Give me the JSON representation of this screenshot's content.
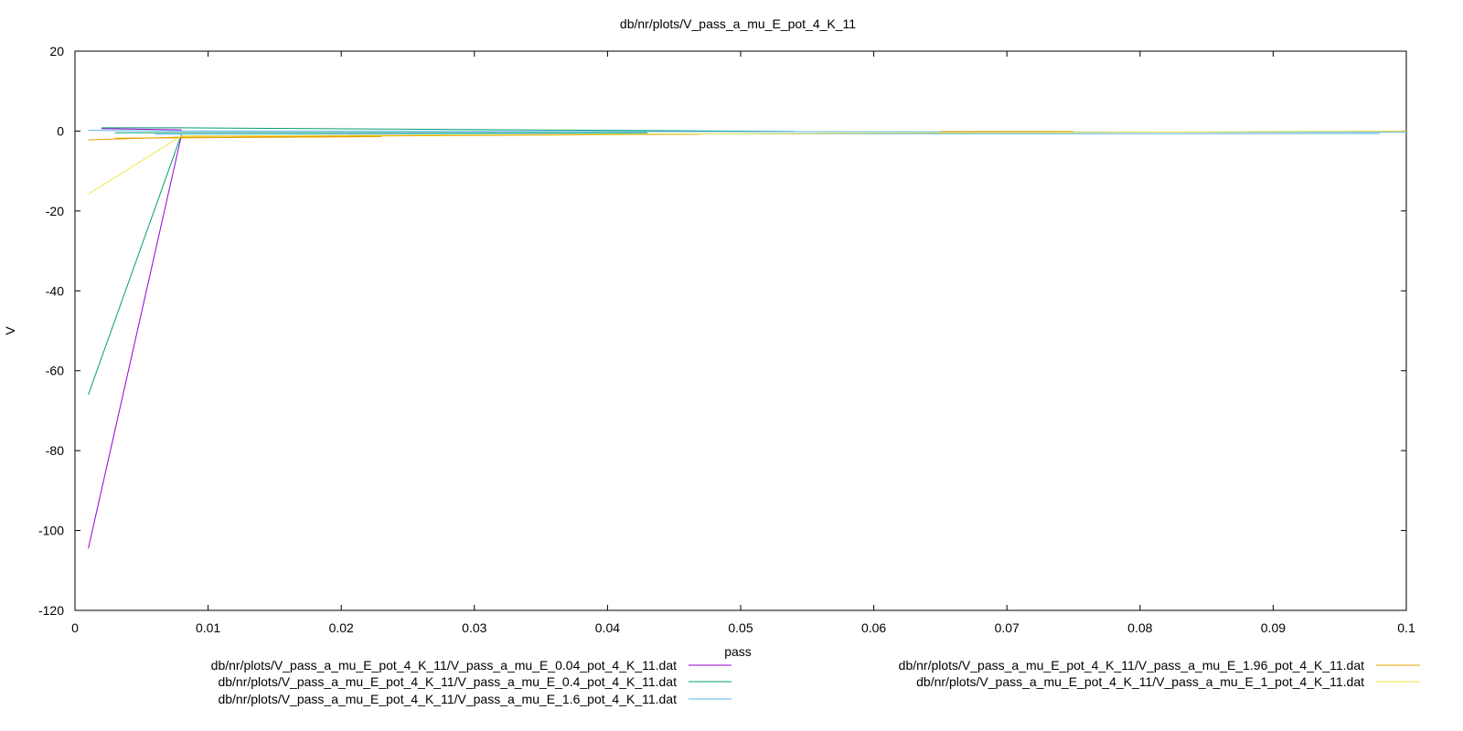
{
  "chart_data": {
    "type": "line",
    "title": "db/nr/plots/V_pass_a_mu_E_pot_4_K_11",
    "xlabel": "pass",
    "ylabel": "V",
    "xlim": [
      0,
      0.1
    ],
    "ylim": [
      -120,
      20
    ],
    "xticks": [
      0,
      0.01,
      0.02,
      0.03,
      0.04,
      0.05,
      0.06,
      0.07,
      0.08,
      0.09,
      0.1
    ],
    "xtick_labels": [
      "0",
      "0.01",
      "0.02",
      "0.03",
      "0.04",
      "0.05",
      "0.06",
      "0.07",
      "0.08",
      "0.09",
      "0.1"
    ],
    "yticks": [
      -120,
      -100,
      -80,
      -60,
      -40,
      -20,
      0,
      20
    ],
    "ytick_labels": [
      "-120",
      "-100",
      "-80",
      "-60",
      "-40",
      "-20",
      "0",
      "20"
    ],
    "grid": false,
    "legend_position": "bottom",
    "series": [
      {
        "name": "db/nr/plots/V_pass_a_mu_E_pot_4_K_11/V_pass_a_mu_E_0.04_pot_4_K_11.dat",
        "color": "#9400d3",
        "segments": [
          [
            [
              0.001,
              -104.5
            ],
            [
              0.008,
              -1.0
            ]
          ],
          [
            [
              0.002,
              0.6
            ],
            [
              0.008,
              0.3
            ]
          ]
        ]
      },
      {
        "name": "db/nr/plots/V_pass_a_mu_E_pot_4_K_11/V_pass_a_mu_E_0.4_pot_4_K_11.dat",
        "color": "#009e73",
        "segments": [
          [
            [
              0.001,
              -66
            ],
            [
              0.008,
              -0.8
            ]
          ],
          [
            [
              0.002,
              0.8
            ],
            [
              0.008,
              0.8
            ],
            [
              0.054,
              -0.1
            ]
          ],
          [
            [
              0.003,
              -0.4
            ],
            [
              0.043,
              -0.4
            ]
          ]
        ]
      },
      {
        "name": "db/nr/plots/V_pass_a_mu_E_pot_4_K_11/V_pass_a_mu_E_1.6_pot_4_K_11.dat",
        "color": "#56b4e9",
        "segments": [
          [
            [
              0.001,
              0.2
            ],
            [
              0.008,
              0.0
            ],
            [
              0.1,
              -0.3
            ]
          ],
          [
            [
              0.006,
              -0.8
            ],
            [
              0.098,
              -0.6
            ]
          ]
        ]
      },
      {
        "name": "db/nr/plots/V_pass_a_mu_E_pot_4_K_11/V_pass_a_mu_E_1.96_pot_4_K_11.dat",
        "color": "#e69f00",
        "segments": [
          [
            [
              0.001,
              -2.2
            ],
            [
              0.008,
              -1.5
            ],
            [
              0.047,
              -0.8
            ]
          ],
          [
            [
              0.003,
              -1.8
            ],
            [
              0.023,
              -1.4
            ]
          ],
          [
            [
              0.065,
              -0.1
            ],
            [
              0.075,
              -0.1
            ]
          ]
        ]
      },
      {
        "name": "db/nr/plots/V_pass_a_mu_E_pot_4_K_11/V_pass_a_mu_E_1_pot_4_K_11.dat",
        "color": "#f0e442",
        "segments": [
          [
            [
              0.001,
              -15.8
            ],
            [
              0.008,
              -1.2
            ],
            [
              0.1,
              0.0
            ]
          ]
        ]
      }
    ]
  }
}
